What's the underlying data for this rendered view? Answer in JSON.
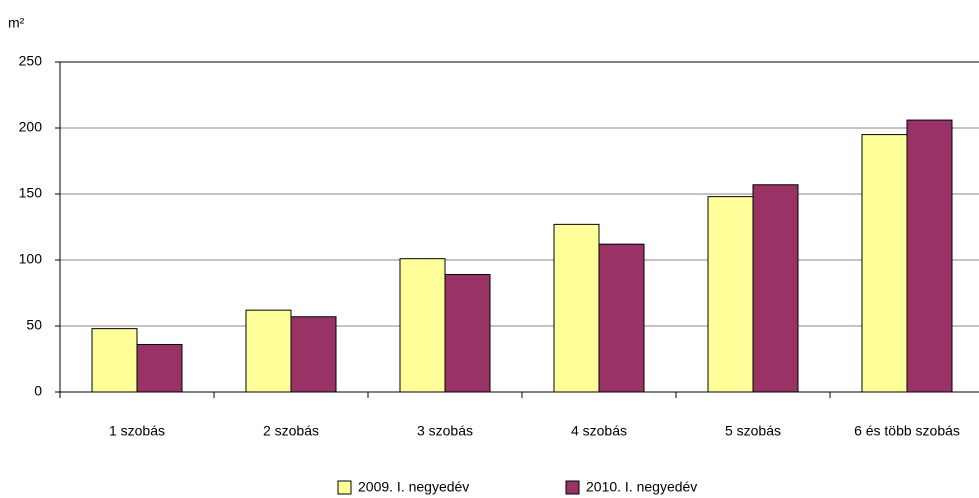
{
  "chart_data": {
    "type": "bar",
    "y_label": "m²",
    "categories": [
      "1 szobás",
      "2 szobás",
      "3 szobás",
      "4 szobás",
      "5 szobás",
      "6 és több szobás"
    ],
    "series": [
      {
        "name": "2009. I. negyedév",
        "color": "#ffff99",
        "values": [
          48,
          62,
          101,
          127,
          148,
          195
        ]
      },
      {
        "name": "2010. I. negyedév",
        "color": "#993366",
        "values": [
          36,
          57,
          89,
          112,
          157,
          206
        ]
      }
    ],
    "ylim": [
      0,
      250
    ],
    "yticks": [
      0,
      50,
      100,
      150,
      200,
      250
    ],
    "grid": true,
    "legend": "bottom"
  }
}
